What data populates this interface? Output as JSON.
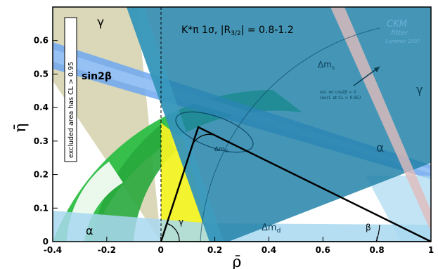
{
  "chart_data": {
    "type": "other",
    "xlabel": "ρ̄",
    "ylabel": "η̄",
    "xlim": [
      -0.4,
      1.0
    ],
    "ylim": [
      0.0,
      0.7
    ],
    "x_ticks": [
      "-0.4",
      "-0.2",
      "0",
      "0.2",
      "0.4",
      "0.6",
      "0.8",
      "1"
    ],
    "x_tick_values": [
      -0.4,
      -0.2,
      0.0,
      0.2,
      0.4,
      0.6,
      0.8,
      1.0
    ],
    "y_ticks": [
      "0",
      "0.1",
      "0.2",
      "0.3",
      "0.4",
      "0.5",
      "0.6"
    ],
    "y_tick_values": [
      0.0,
      0.1,
      0.2,
      0.3,
      0.4,
      0.5,
      0.6
    ],
    "triangle_apex": [
      0.15,
      0.31
    ],
    "annotations": {
      "header": "K*π 1σ, |R",
      "header_subscript": "3/2",
      "header_suffix": "| = 0.8-1.2",
      "excluded_note": "excluded area has CL > 0.95",
      "sin2beta": "sin2β",
      "gamma_top": "γ",
      "gamma_right": "γ",
      "gamma_angle": "γ",
      "alpha_right": "α",
      "alpha_left": "α",
      "beta_angle": "β",
      "dms": "Δm",
      "dms_sub": "s",
      "dmd": "Δm",
      "dmd_sub": "d",
      "dmd_small": "Δm",
      "dmd_small_sub": "d",
      "sol_note_1": "sol. w/ cos2β < 0",
      "sol_note_2": "(excl. at CL > 0.95)",
      "logo_1": "CKM",
      "logo_2": "fitter",
      "logo_3": "Summer 2007"
    },
    "colors": {
      "fit_band": "#1c7fa6",
      "sin2b_band": "#6ea8f0",
      "alpha_band": "#a8d8f0",
      "gamma_band": "#d8d6b4",
      "dmd_ring": "#2dbe45",
      "vub_ring": "#f2f225",
      "triangle": "#000000"
    }
  }
}
